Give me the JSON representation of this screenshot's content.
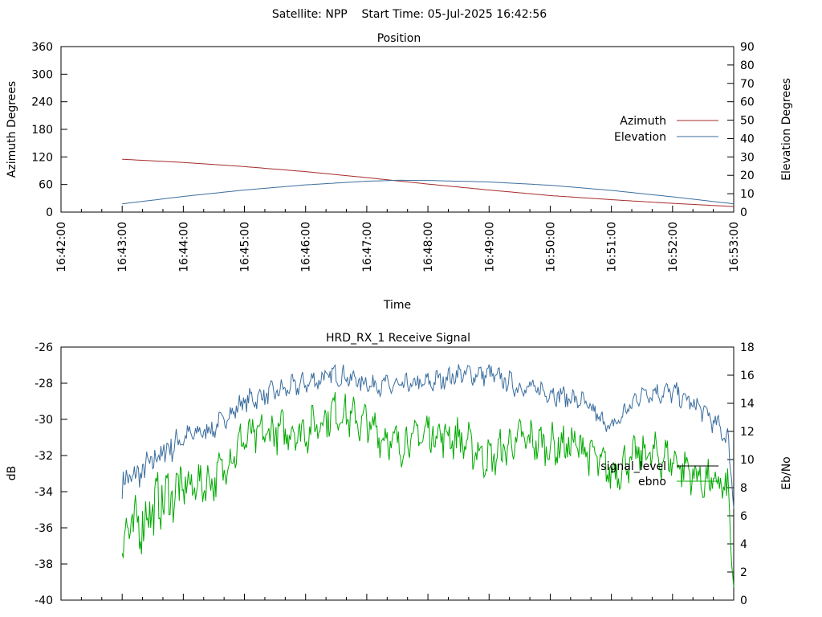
{
  "page_title": "Satellite: NPP    Start Time: 05-Jul-2025 16:42:56",
  "colors": {
    "azimuth": "#a52a2a",
    "elevation": "#3b6e9e",
    "signal_level": "#3b6e9e",
    "ebno": "#00aa00",
    "legend_signal_level": "#000000",
    "legend_ebno": "#00aa00"
  },
  "chart_data": [
    {
      "type": "line",
      "title": "Position",
      "xlabel": "Time",
      "ylabel": "Azimuth Degrees",
      "y2label": "Elevation Degrees",
      "x_ticks": [
        "16:42:00",
        "16:43:00",
        "16:44:00",
        "16:45:00",
        "16:46:00",
        "16:47:00",
        "16:48:00",
        "16:49:00",
        "16:50:00",
        "16:51:00",
        "16:52:00",
        "16:53:00"
      ],
      "xlim_minutes": [
        0,
        11
      ],
      "ylim": [
        0,
        360
      ],
      "y_ticks": [
        0,
        60,
        120,
        180,
        240,
        300,
        360
      ],
      "y2lim": [
        0,
        90
      ],
      "y2_ticks": [
        0,
        10,
        20,
        30,
        40,
        50,
        60,
        70,
        80,
        90
      ],
      "legend_position": "right",
      "grid": false,
      "series": [
        {
          "name": "Azimuth",
          "axis": "y",
          "x_minutes": [
            1.0,
            2.0,
            3.0,
            4.0,
            5.0,
            6.0,
            7.0,
            8.0,
            9.0,
            10.0,
            11.0
          ],
          "values": [
            115,
            108,
            99,
            88,
            75,
            61,
            48,
            36,
            27,
            19,
            12
          ]
        },
        {
          "name": "Elevation",
          "axis": "y2",
          "x_minutes": [
            1.0,
            2.0,
            3.0,
            4.0,
            5.0,
            5.5,
            6.0,
            7.0,
            8.0,
            9.0,
            10.0,
            11.0
          ],
          "values": [
            4.5,
            8.5,
            12,
            14.8,
            16.8,
            17.3,
            17.2,
            16.4,
            14.6,
            11.8,
            8.3,
            4.5
          ]
        }
      ]
    },
    {
      "type": "line",
      "title": "HRD_RX_1 Receive Signal",
      "xlabel": "",
      "ylabel": "dB",
      "y2label": "Eb/No",
      "xlim_minutes": [
        0,
        11
      ],
      "ylim": [
        -40,
        -26
      ],
      "y_ticks": [
        -40,
        -38,
        -36,
        -34,
        -32,
        -30,
        -28,
        -26
      ],
      "y2lim": [
        0,
        18
      ],
      "y2_ticks": [
        0,
        2,
        4,
        6,
        8,
        10,
        12,
        14,
        16,
        18
      ],
      "legend_position": "right",
      "grid": false,
      "series": [
        {
          "name": "signal_level",
          "axis": "y",
          "x_minutes": [
            1.0,
            1.3,
            1.6,
            2.0,
            2.5,
            3.0,
            3.5,
            4.0,
            4.5,
            5.0,
            5.5,
            6.0,
            6.5,
            7.0,
            7.5,
            8.0,
            8.5,
            9.0,
            9.5,
            10.0,
            10.5,
            10.9,
            11.0
          ],
          "values": [
            -33.5,
            -33.0,
            -32.0,
            -31.0,
            -30.5,
            -29.0,
            -28.5,
            -28.0,
            -27.5,
            -28.0,
            -28.2,
            -28.0,
            -27.5,
            -27.5,
            -28.2,
            -28.5,
            -29.0,
            -30.5,
            -28.5,
            -28.5,
            -29.5,
            -31.0,
            -34.5
          ]
        },
        {
          "name": "ebno",
          "axis": "y2",
          "x_minutes": [
            1.0,
            1.3,
            1.6,
            2.0,
            2.5,
            3.0,
            3.5,
            4.0,
            4.5,
            5.0,
            5.5,
            6.0,
            6.5,
            7.0,
            7.5,
            8.0,
            8.5,
            9.0,
            9.5,
            10.0,
            10.5,
            10.9,
            11.0
          ],
          "values": [
            4.5,
            5.5,
            7.0,
            8.0,
            8.5,
            11.5,
            12.0,
            12.0,
            13.5,
            12.5,
            11.0,
            12.0,
            11.5,
            10.0,
            11.5,
            11.0,
            11.0,
            9.0,
            10.5,
            10.0,
            8.5,
            8.0,
            0.5
          ]
        }
      ]
    }
  ]
}
